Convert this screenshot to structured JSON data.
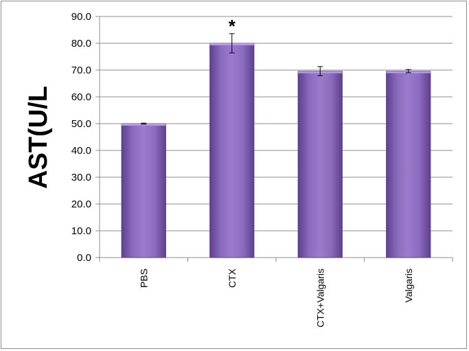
{
  "chart_data": {
    "type": "bar",
    "categories": [
      "PBS",
      "CTX",
      "CTX+Valgaris",
      "Valgaris"
    ],
    "values": [
      50.0,
      80.0,
      69.6,
      69.6
    ],
    "errors": [
      0.2,
      3.6,
      1.7,
      0.6
    ],
    "annotations": [
      "",
      "*",
      "",
      ""
    ],
    "ylabel": "AST(U/L",
    "xlabel": "",
    "ylim": [
      0,
      90
    ],
    "yticks": [
      "0.0",
      "10.0",
      "20.0",
      "30.0",
      "40.0",
      "50.0",
      "60.0",
      "70.0",
      "80.0",
      "90.0"
    ],
    "grid": true,
    "bar_color": "#8060b0"
  }
}
